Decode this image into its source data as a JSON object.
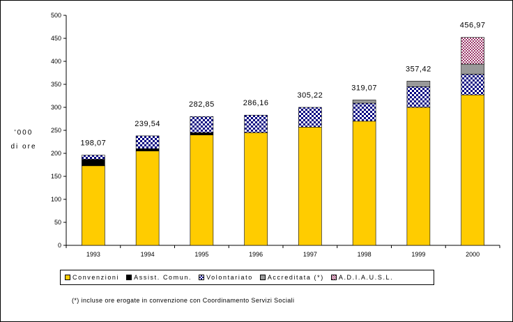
{
  "chart_data": {
    "type": "bar",
    "stacked": true,
    "categories": [
      "1993",
      "1994",
      "1995",
      "1996",
      "1997",
      "1998",
      "1999",
      "2000"
    ],
    "ylabel": "'000 di ore",
    "ylim": [
      0,
      500
    ],
    "yticks": [
      0,
      50,
      100,
      150,
      200,
      250,
      300,
      350,
      400,
      450,
      500
    ],
    "grid": false,
    "legend_position": "bottom",
    "series": [
      {
        "name": "Convenzioni",
        "color": "#FFCC00",
        "pattern": "solid",
        "values": [
          173,
          205,
          240,
          245,
          257,
          270,
          300,
          327
        ]
      },
      {
        "name": "Assist. Comun.",
        "color": "#000000",
        "pattern": "solid",
        "values": [
          14,
          5,
          5,
          0,
          0,
          0,
          0,
          0
        ]
      },
      {
        "name": "Volontariato",
        "color": "#000080",
        "pattern": "checker",
        "values": [
          9,
          28,
          35,
          38,
          43,
          39,
          45,
          45
        ]
      },
      {
        "name": "Accreditata (*)",
        "color": "#999999",
        "pattern": "solid",
        "values": [
          0,
          0,
          0,
          0,
          0,
          7,
          12,
          22
        ]
      },
      {
        "name": "A.D.I.A.U.S.L.",
        "color": "#993366",
        "pattern": "checker",
        "values": [
          0,
          0,
          0,
          0,
          0,
          0,
          0,
          58
        ]
      }
    ],
    "totals": [
      "198,07",
      "239,54",
      "282,85",
      "286,16",
      "305,22",
      "319,07",
      "357,42",
      "456,97"
    ]
  },
  "legend": {
    "items": [
      "Convenzioni",
      "Assist. Comun.",
      "Volontariato",
      "Accreditata (*)",
      "A.D.I.A.U.S.L."
    ]
  },
  "footnote": "(*) incluse ore erogate in convenzione con Coordinamento Servizi Sociali"
}
